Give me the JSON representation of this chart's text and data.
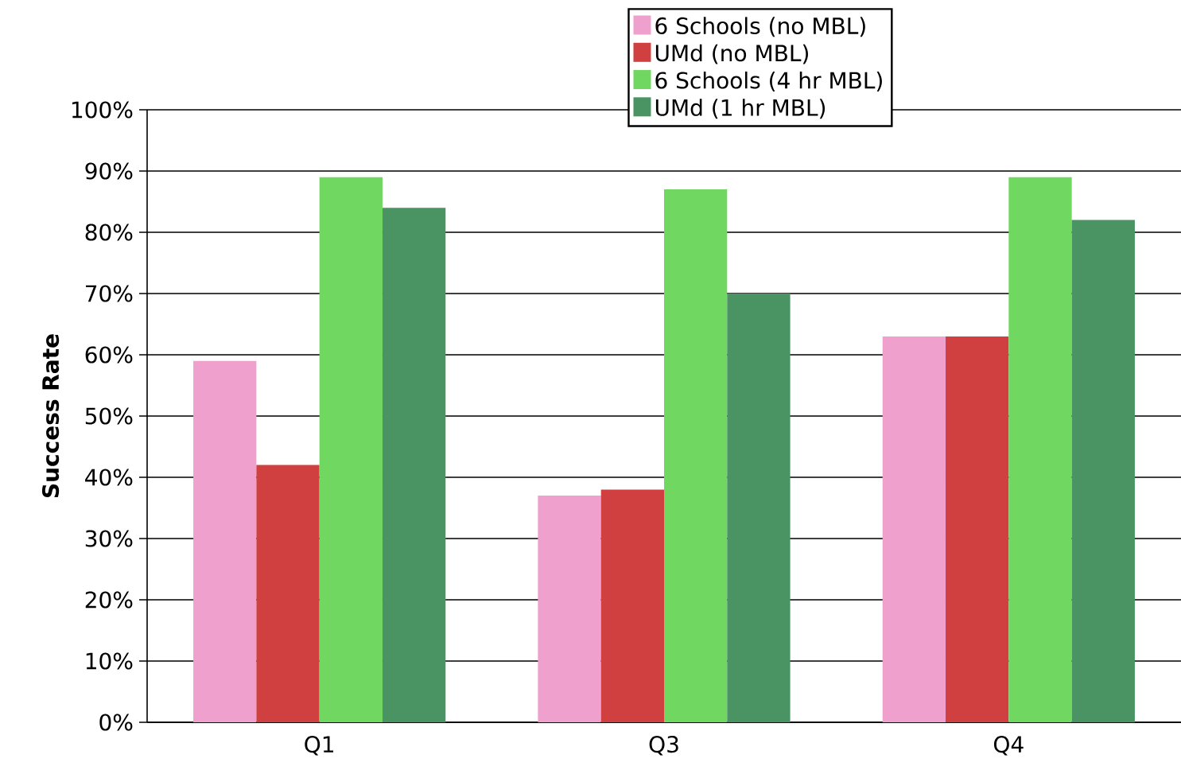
{
  "chart_data": {
    "type": "bar",
    "ylabel": "Success Rate",
    "categories": [
      "Q1",
      "Q3",
      "Q4"
    ],
    "series": [
      {
        "name": "6 Schools (no MBL)",
        "color": "#f0a0cc",
        "values": [
          59,
          37,
          63
        ]
      },
      {
        "name": "UMd (no MBL)",
        "color": "#d04040",
        "values": [
          42,
          38,
          63
        ]
      },
      {
        "name": "6 Schools (4 hr MBL)",
        "color": "#70d860",
        "values": [
          89,
          87,
          89
        ]
      },
      {
        "name": "UMd (1 hr MBL)",
        "color": "#4a9463",
        "values": [
          84,
          70,
          82
        ]
      }
    ],
    "ylim": [
      0,
      100
    ],
    "yticks": [
      {
        "value": 0,
        "label": "0%"
      },
      {
        "value": 10,
        "label": "10%"
      },
      {
        "value": 20,
        "label": "20%"
      },
      {
        "value": 30,
        "label": "30%"
      },
      {
        "value": 40,
        "label": "40%"
      },
      {
        "value": 50,
        "label": "50%"
      },
      {
        "value": 60,
        "label": "60%"
      },
      {
        "value": 70,
        "label": "70%"
      },
      {
        "value": 80,
        "label": "80%"
      },
      {
        "value": 90,
        "label": "90%"
      },
      {
        "value": 100,
        "label": "100%"
      }
    ],
    "grid": "y",
    "legend": "top"
  }
}
